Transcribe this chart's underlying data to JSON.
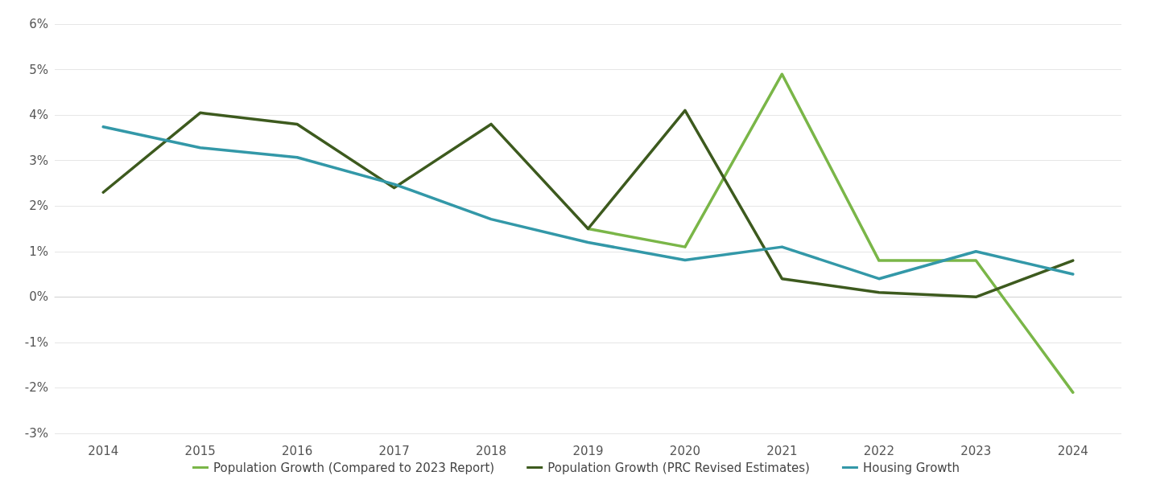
{
  "chart_data": {
    "type": "line",
    "categories": [
      "2014",
      "2015",
      "2016",
      "2017",
      "2018",
      "2019",
      "2020",
      "2021",
      "2022",
      "2023",
      "2024"
    ],
    "series": [
      {
        "name": "Population Growth (Compared to 2023 Report)",
        "color": "#7ab648",
        "values": [
          null,
          null,
          null,
          null,
          null,
          1.5,
          1.1,
          4.9,
          0.8,
          0.8,
          -2.1
        ]
      },
      {
        "name": "Population Growth (PRC Revised Estimates)",
        "color": "#3d5a1e",
        "values": [
          2.3,
          4.05,
          3.8,
          2.4,
          3.8,
          1.5,
          4.1,
          0.4,
          0.1,
          0.0,
          0.8
        ]
      },
      {
        "name": "Housing Growth",
        "color": "#3398a8",
        "values": [
          3.74,
          3.28,
          3.07,
          2.48,
          1.71,
          1.2,
          0.81,
          1.1,
          0.4,
          1.0,
          0.5
        ]
      }
    ],
    "ylim": [
      -3,
      6
    ],
    "yticks": [
      {
        "value": -3,
        "label": "-3%"
      },
      {
        "value": -2,
        "label": "-2%"
      },
      {
        "value": -1,
        "label": "-1%"
      },
      {
        "value": 0,
        "label": "0%"
      },
      {
        "value": 1,
        "label": "1%"
      },
      {
        "value": 2,
        "label": "2%"
      },
      {
        "value": 3,
        "label": "3%"
      },
      {
        "value": 4,
        "label": "4%"
      },
      {
        "value": 5,
        "label": "5%"
      },
      {
        "value": 6,
        "label": "6%"
      }
    ],
    "grid": "y",
    "legend": "bottom",
    "marker": "none",
    "line_style": "solid"
  }
}
